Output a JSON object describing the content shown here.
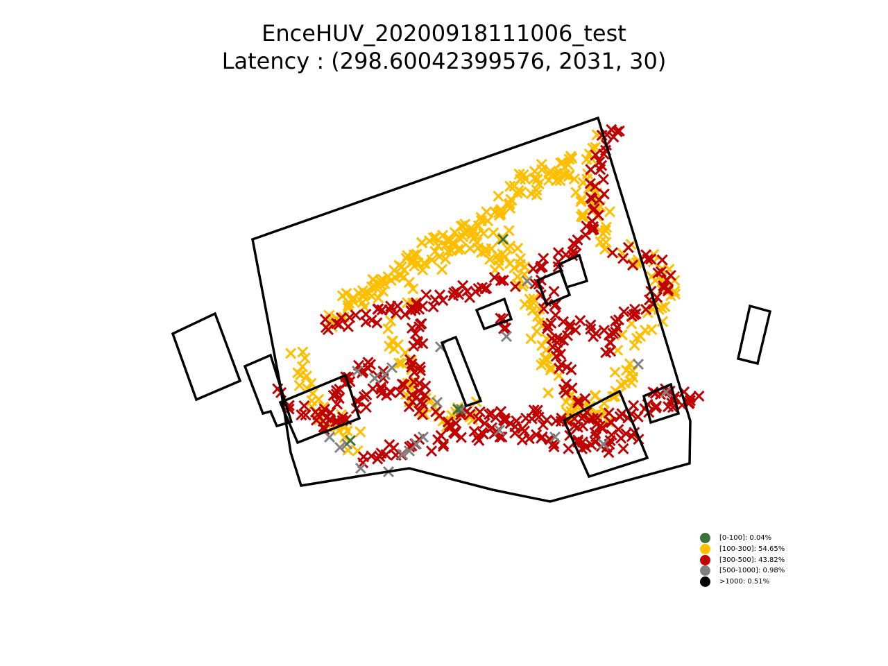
{
  "title": {
    "line1": "EnceHUV_20200918111006_test",
    "line2": "Latency : (298.60042399576, 2031, 30)"
  },
  "colors": {
    "band_0_100": "#3a7439",
    "band_100_300": "#ffbf00",
    "band_300_500": "#c00000",
    "band_500_1000": "#808080",
    "band_over_1000": "#000000",
    "outline": "#000000"
  },
  "legend": {
    "placement": "lower-right",
    "items": [
      {
        "label": "[0-100]: 0.04%",
        "color": "#3a7439"
      },
      {
        "label": "[100-300]: 54.65%",
        "color": "#ffbf00"
      },
      {
        "label": "[300-500]: 43.82%",
        "color": "#c00000"
      },
      {
        "label": "[500-1000]: 0.98%",
        "color": "#808080"
      },
      {
        "label": ">1000: 0.51%",
        "color": "#000000"
      }
    ]
  },
  "chart_data": {
    "type": "scatter",
    "marker": "x",
    "axes_visible": false,
    "grid": false,
    "series": [
      {
        "name": "[0-100]: 0.04%",
        "share_percent": 0.04,
        "color": "#3a7439"
      },
      {
        "name": "[100-300]: 54.65%",
        "share_percent": 54.65,
        "color": "#ffbf00"
      },
      {
        "name": "[300-500]: 43.82%",
        "share_percent": 43.82,
        "color": "#c00000"
      },
      {
        "name": "[500-1000]: 0.98%",
        "share_percent": 0.98,
        "color": "#808080"
      },
      {
        "name": ">1000: 0.51%",
        "share_percent": 0.51,
        "color": "#000000"
      }
    ]
  }
}
